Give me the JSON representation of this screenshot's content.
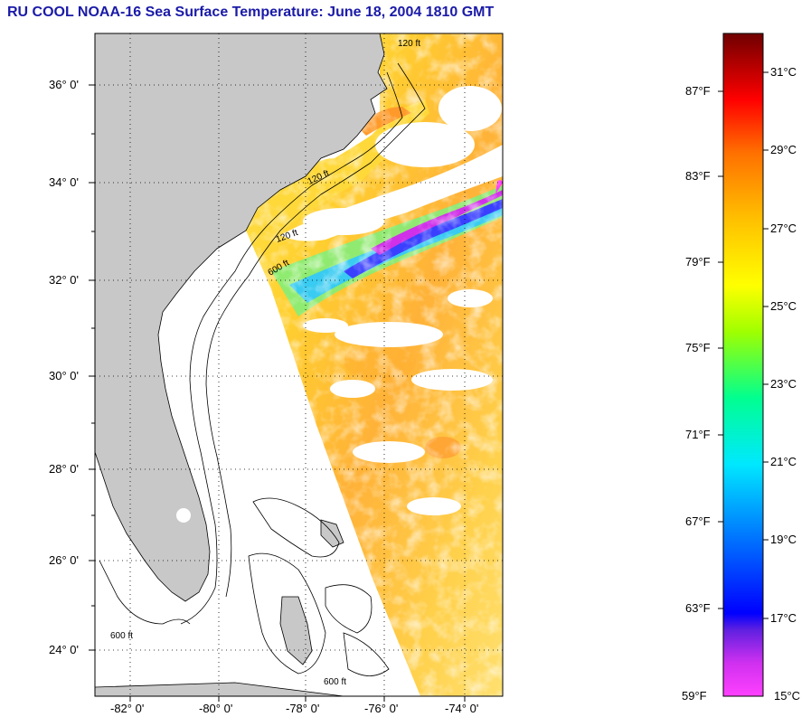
{
  "title": "RU COOL  NOAA-16  Sea Surface Temperature:  June 18, 2004 1810 GMT",
  "map": {
    "lat_labels": [
      "36° 0'",
      "34° 0'",
      "32° 0'",
      "30° 0'",
      "28° 0'",
      "26° 0'",
      "24° 0'"
    ],
    "lon_labels": [
      "-82° 0'",
      "-80° 0'",
      "-78° 0'",
      "-76° 0'",
      "-74° 0'"
    ],
    "contour_labels": [
      "120 ft",
      "600 ft"
    ],
    "colors": {
      "land": "#c8c8c8",
      "cloud": "#ffffff",
      "frame": "#000000"
    }
  },
  "colorbar": {
    "fahrenheit_labels": [
      "87°F",
      "83°F",
      "79°F",
      "75°F",
      "71°F",
      "67°F",
      "63°F",
      "59°F"
    ],
    "celsius_labels": [
      "31°C",
      "29°C",
      "27°C",
      "25°C",
      "23°C",
      "21°C",
      "19°C",
      "17°C",
      "15°C"
    ],
    "colors": [
      "#ff40ff",
      "#8a20e0",
      "#0000ff",
      "#00a0ff",
      "#00ffff",
      "#00ff80",
      "#80ff00",
      "#ffff00",
      "#ffc000",
      "#ff8000",
      "#ff2000",
      "#c00000",
      "#700000"
    ]
  }
}
